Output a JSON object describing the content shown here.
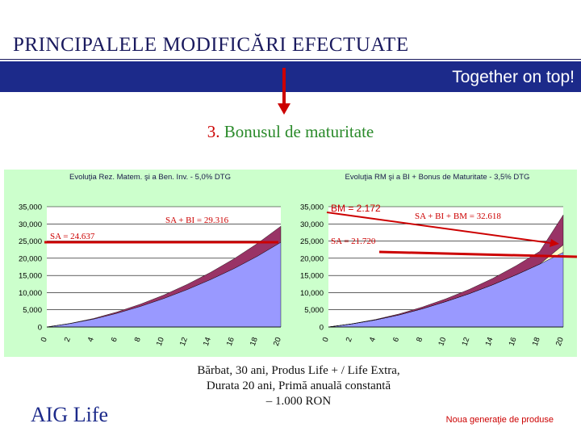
{
  "header": {
    "title": "PRINCIPALELE MODIFICĂRI EFECTUATE",
    "band_text": "Together on top!"
  },
  "section": {
    "number": "3.",
    "text": "Bonusul de maturitate"
  },
  "caption": {
    "line1": "Bărbat, 30 ani, Produs Life + / Life Extra,",
    "line2": "Durata 20 ani, Primă anuală constantă",
    "line3": "– 1.000 RON"
  },
  "logo": {
    "text": "AIG Life"
  },
  "footer": {
    "text": "Noua generaţie de produse"
  },
  "colors": {
    "band": "#1c2a8a",
    "chart_bg": "#ccffcc",
    "series_base": "#9999ff",
    "series_bonus_inv": "#993366",
    "series_bonus_maturity": "#ffffcc",
    "annotation": "#cc0000"
  },
  "chart_data": [
    {
      "type": "area",
      "title": "Evoluţia Rez. Matem. şi a Ben. Inv. - 5,0% DTG",
      "x": [
        0,
        2,
        4,
        6,
        8,
        10,
        12,
        14,
        16,
        18,
        20
      ],
      "x_tick_labels": [
        "0",
        "2",
        "4",
        "6",
        "8",
        "10",
        "12",
        "14",
        "16",
        "18",
        "20"
      ],
      "y_tick_labels": [
        "0",
        "5,000",
        "10,000",
        "15,000",
        "20,000",
        "25,000",
        "30,000",
        "35,000"
      ],
      "ylim": [
        0,
        35000
      ],
      "stacked": true,
      "series": [
        {
          "values": [
            0,
            1000,
            2300,
            4000,
            6000,
            8300,
            10900,
            13800,
            17000,
            20600,
            24637
          ]
        },
        {
          "values": [
            0,
            60,
            180,
            370,
            640,
            1000,
            1500,
            2100,
            2850,
            3700,
            4679
          ]
        }
      ],
      "annotations": [
        "SA + BI = 29.316",
        "SA = 24.637"
      ]
    },
    {
      "type": "area",
      "title": "Evoluţia RM şi a BI + Bonus de Maturitate - 3,5% DTG",
      "x": [
        0,
        2,
        4,
        6,
        8,
        10,
        12,
        14,
        16,
        18,
        20
      ],
      "x_tick_labels": [
        "0",
        "2",
        "4",
        "6",
        "8",
        "10",
        "12",
        "14",
        "16",
        "18",
        "20"
      ],
      "y_tick_labels": [
        "0",
        "5,000",
        "10,000",
        "15,000",
        "20,000",
        "25,000",
        "30,000",
        "35,000"
      ],
      "ylim": [
        0,
        35000
      ],
      "stacked": true,
      "series": [
        {
          "values": [
            0,
            900,
            2050,
            3500,
            5300,
            7400,
            9700,
            12300,
            15200,
            18300,
            21720
          ]
        },
        {
          "values": [
            0,
            0,
            0,
            0,
            0,
            0,
            0,
            0,
            0,
            0,
            2172
          ]
        },
        {
          "values": [
            0,
            40,
            130,
            280,
            500,
            800,
            1250,
            1850,
            2650,
            3700,
            8726
          ]
        }
      ],
      "annotations": [
        "BM = 2.172",
        "SA + BI + BM = 32.618",
        "SA = 21.720"
      ]
    }
  ]
}
